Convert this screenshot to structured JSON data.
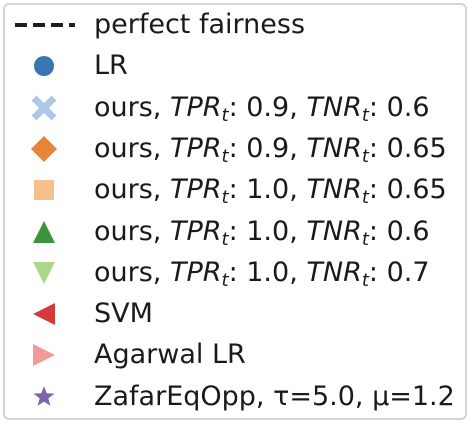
{
  "legend": {
    "entries": [
      {
        "marker": "dashed-line",
        "color": "#1f1f1f",
        "parts": [
          {
            "t": "perfect fairness"
          }
        ]
      },
      {
        "marker": "circle",
        "color": "#3a75b0",
        "parts": [
          {
            "t": "LR"
          }
        ]
      },
      {
        "marker": "x",
        "color": "#aec7e8",
        "parts": [
          {
            "t": "ours, "
          },
          {
            "t": "TPR",
            "s": "i"
          },
          {
            "t": "t",
            "s": "sub"
          },
          {
            "t": ": 0.9, "
          },
          {
            "t": "TNR",
            "s": "i"
          },
          {
            "t": "t",
            "s": "sub"
          },
          {
            "t": ": 0.6"
          }
        ]
      },
      {
        "marker": "diamond",
        "color": "#e6843a",
        "parts": [
          {
            "t": "ours, "
          },
          {
            "t": "TPR",
            "s": "i"
          },
          {
            "t": "t",
            "s": "sub"
          },
          {
            "t": ": 0.9, "
          },
          {
            "t": "TNR",
            "s": "i"
          },
          {
            "t": "t",
            "s": "sub"
          },
          {
            "t": ": 0.65"
          }
        ]
      },
      {
        "marker": "square",
        "color": "#f5c08b",
        "parts": [
          {
            "t": "ours, "
          },
          {
            "t": "TPR",
            "s": "i"
          },
          {
            "t": "t",
            "s": "sub"
          },
          {
            "t": ": 1.0, "
          },
          {
            "t": "TNR",
            "s": "i"
          },
          {
            "t": "t",
            "s": "sub"
          },
          {
            "t": ": 0.65"
          }
        ]
      },
      {
        "marker": "triangle-up",
        "color": "#3a923a",
        "parts": [
          {
            "t": "ours, "
          },
          {
            "t": "TPR",
            "s": "i"
          },
          {
            "t": "t",
            "s": "sub"
          },
          {
            "t": ": 1.0, "
          },
          {
            "t": "TNR",
            "s": "i"
          },
          {
            "t": "t",
            "s": "sub"
          },
          {
            "t": ": 0.6"
          }
        ]
      },
      {
        "marker": "triangle-down",
        "color": "#a9d88b",
        "parts": [
          {
            "t": "ours, "
          },
          {
            "t": "TPR",
            "s": "i"
          },
          {
            "t": "t",
            "s": "sub"
          },
          {
            "t": ": 1.0, "
          },
          {
            "t": "TNR",
            "s": "i"
          },
          {
            "t": "t",
            "s": "sub"
          },
          {
            "t": ": 0.7"
          }
        ]
      },
      {
        "marker": "triangle-left",
        "color": "#d43a3a",
        "parts": [
          {
            "t": "SVM"
          }
        ]
      },
      {
        "marker": "triangle-right",
        "color": "#f09a9a",
        "parts": [
          {
            "t": "Agarwal LR"
          }
        ]
      },
      {
        "marker": "star",
        "color": "#8064a8",
        "parts": [
          {
            "t": "ZafarEqOpp, τ=5.0, μ=1.2"
          }
        ]
      }
    ]
  },
  "chart_data": {
    "type": "scatter",
    "legend_only": true,
    "legend_placement": "full-frame",
    "series": [
      {
        "name": "perfect fairness",
        "style": "dashed-line",
        "color": "#1f1f1f"
      },
      {
        "name": "LR",
        "marker": "circle",
        "color": "#3a75b0"
      },
      {
        "name": "ours, TPR_t: 0.9, TNR_t: 0.6",
        "marker": "x",
        "color": "#aec7e8"
      },
      {
        "name": "ours, TPR_t: 0.9, TNR_t: 0.65",
        "marker": "diamond",
        "color": "#e6843a"
      },
      {
        "name": "ours, TPR_t: 1.0, TNR_t: 0.65",
        "marker": "square",
        "color": "#f5c08b"
      },
      {
        "name": "ours, TPR_t: 1.0, TNR_t: 0.6",
        "marker": "triangle-up",
        "color": "#3a923a"
      },
      {
        "name": "ours, TPR_t: 1.0, TNR_t: 0.7",
        "marker": "triangle-down",
        "color": "#a9d88b"
      },
      {
        "name": "SVM",
        "marker": "triangle-left",
        "color": "#d43a3a"
      },
      {
        "name": "Agarwal LR",
        "marker": "triangle-right",
        "color": "#f09a9a"
      },
      {
        "name": "ZafarEqOpp, τ=5.0, μ=1.2",
        "marker": "star",
        "color": "#8064a8"
      }
    ]
  }
}
